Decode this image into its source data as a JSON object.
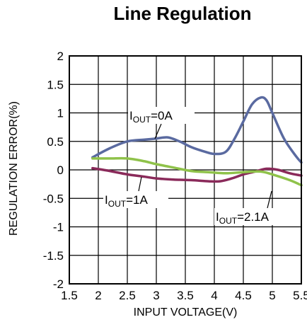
{
  "chart_data": {
    "type": "line",
    "title": "Line Regulation",
    "xlabel": "INPUT VOLTAGE(V)",
    "ylabel": "REGULATION ERROR(%)",
    "xlim": [
      1.5,
      5.5
    ],
    "ylim": [
      -2,
      2
    ],
    "x_ticks": [
      "1.5",
      "2",
      "2.5",
      "3",
      "3.5",
      "4",
      "4.5",
      "5",
      "5.5"
    ],
    "y_ticks": [
      "2",
      "1.5",
      "1",
      "0.5",
      "0",
      "-0.5",
      "-1",
      "-1.5",
      "-2"
    ],
    "grid": true,
    "series": [
      {
        "name": "IOUT=0A",
        "label_main": "I",
        "label_sub": "OUT",
        "label_rest": "=0A",
        "color": "#5a6aa0",
        "points": [
          [
            1.9,
            0.22
          ],
          [
            2.2,
            0.38
          ],
          [
            2.5,
            0.5
          ],
          [
            2.8,
            0.53
          ],
          [
            3.0,
            0.55
          ],
          [
            3.2,
            0.57
          ],
          [
            3.4,
            0.5
          ],
          [
            3.6,
            0.4
          ],
          [
            3.8,
            0.33
          ],
          [
            4.0,
            0.28
          ],
          [
            4.2,
            0.32
          ],
          [
            4.35,
            0.55
          ],
          [
            4.5,
            0.85
          ],
          [
            4.65,
            1.15
          ],
          [
            4.8,
            1.27
          ],
          [
            4.9,
            1.22
          ],
          [
            5.0,
            1.0
          ],
          [
            5.2,
            0.55
          ],
          [
            5.4,
            0.25
          ],
          [
            5.5,
            0.13
          ]
        ]
      },
      {
        "name": "IOUT=1A",
        "label_main": "I",
        "label_sub": "OUT",
        "label_rest": "=1A",
        "color": "#8a2a5a",
        "points": [
          [
            1.9,
            0.03
          ],
          [
            2.2,
            -0.02
          ],
          [
            2.5,
            -0.08
          ],
          [
            2.8,
            -0.12
          ],
          [
            3.0,
            -0.15
          ],
          [
            3.3,
            -0.17
          ],
          [
            3.6,
            -0.18
          ],
          [
            3.9,
            -0.2
          ],
          [
            4.1,
            -0.2
          ],
          [
            4.3,
            -0.15
          ],
          [
            4.5,
            -0.08
          ],
          [
            4.7,
            -0.03
          ],
          [
            4.9,
            0.02
          ],
          [
            5.1,
            0.0
          ],
          [
            5.3,
            -0.06
          ],
          [
            5.5,
            -0.1
          ]
        ]
      },
      {
        "name": "IOUT=2.1A",
        "label_main": "I",
        "label_sub": "OUT",
        "label_rest": "=2.1A",
        "color": "#8fc24a",
        "points": [
          [
            1.9,
            0.2
          ],
          [
            2.2,
            0.2
          ],
          [
            2.5,
            0.2
          ],
          [
            2.8,
            0.15
          ],
          [
            3.0,
            0.1
          ],
          [
            3.3,
            0.04
          ],
          [
            3.6,
            -0.02
          ],
          [
            3.9,
            -0.04
          ],
          [
            4.2,
            -0.06
          ],
          [
            4.5,
            -0.04
          ],
          [
            4.8,
            -0.03
          ],
          [
            5.0,
            -0.08
          ],
          [
            5.3,
            -0.18
          ],
          [
            5.5,
            -0.27
          ]
        ]
      }
    ]
  }
}
